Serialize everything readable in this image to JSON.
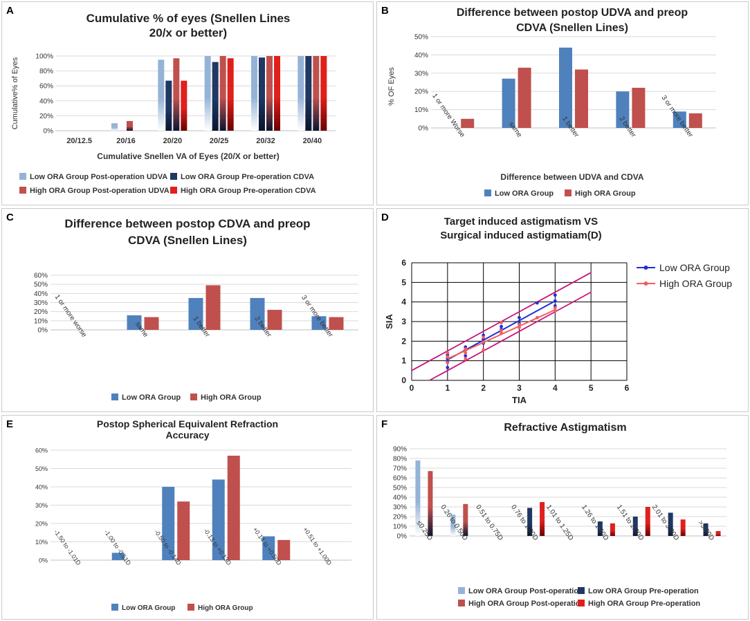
{
  "figure": {
    "panel_letters": [
      "A",
      "B",
      "C",
      "D",
      "E",
      "F"
    ]
  },
  "colors": {
    "light_blue": "#95b3d7",
    "navy": "#1f3864",
    "mid_blue": "#4f81bd",
    "brick": "#c0504d",
    "red": "#e0201b",
    "dark_red": "#6b0000",
    "royal_blue": "#1f2ed8",
    "coral": "#f25c5c",
    "magenta": "#c5157a",
    "grid_gray": "#d9d9d9"
  },
  "chart_data": [
    {
      "id": "A",
      "type": "bar",
      "title": [
        "Cumulative % of eyes (Snellen Lines",
        "20/x or better)"
      ],
      "xlabel": "Cumulative Snellen VA of Eyes (20/X or better)",
      "ylabel": "Cumulative% of Eyes",
      "ylim": [
        0,
        100
      ],
      "yticks": [
        "0%",
        "20%",
        "40%",
        "60%",
        "80%",
        "100%"
      ],
      "categories": [
        "20/12.5",
        "20/16",
        "20/20",
        "20/25",
        "20/32",
        "20/40"
      ],
      "series": [
        {
          "name": "Low ORA Group Post-operation UDVA",
          "color": "light_blue",
          "values": [
            0,
            10,
            95,
            100,
            100,
            100
          ]
        },
        {
          "name": "Low ORA Group  Pre-operation CDVA",
          "color": "navy",
          "values": [
            0,
            0,
            67,
            92,
            98,
            100
          ]
        },
        {
          "name": "High ORA Group  Post-operation UDVA",
          "color": "brick",
          "values": [
            0,
            13,
            97,
            100,
            100,
            100
          ]
        },
        {
          "name": "High ORA Group Pre-operation CDVA",
          "color": "red",
          "values": [
            0,
            0,
            67,
            97,
            100,
            100
          ]
        }
      ],
      "legend_position": "bottom"
    },
    {
      "id": "B",
      "type": "bar",
      "title": [
        "Difference between  postop UDVA and preop",
        "CDVA (Snellen Lines)"
      ],
      "xlabel": "Difference between UDVA and CDVA",
      "ylabel": "% OF Eyes",
      "ylim": [
        0,
        50
      ],
      "yticks": [
        "0%",
        "10%",
        "20%",
        "30%",
        "40%",
        "50%"
      ],
      "categories": [
        "1 or more Worse",
        "same",
        "1 better",
        "2 better",
        "3 or more better"
      ],
      "series": [
        {
          "name": "Low ORA Group",
          "color": "mid_blue",
          "values": [
            0,
            27,
            44,
            20,
            9
          ]
        },
        {
          "name": "High ORA Group",
          "color": "brick",
          "values": [
            5,
            33,
            32,
            22,
            8
          ]
        }
      ],
      "legend_position": "bottom"
    },
    {
      "id": "C",
      "type": "bar",
      "title": [
        "Difference between  postop CDVA and preop",
        "CDVA (Snellen Lines)"
      ],
      "xlabel": "",
      "ylabel": "",
      "ylim": [
        0,
        60
      ],
      "yticks": [
        "0%",
        "10%",
        "20%",
        "30%",
        "40%",
        "50%",
        "60%"
      ],
      "categories": [
        "1 or more worse",
        "same",
        "1 better",
        "2 better",
        "3 or more better"
      ],
      "series": [
        {
          "name": "Low ORA Group",
          "color": "mid_blue",
          "values": [
            0,
            16,
            35,
            35,
            15
          ]
        },
        {
          "name": "High ORA Group",
          "color": "brick",
          "values": [
            0,
            14,
            49,
            22,
            14
          ]
        }
      ],
      "legend_position": "bottom"
    },
    {
      "id": "D",
      "type": "scatter",
      "title": [
        "Target induced astigmatism VS",
        "Surgical induced astigmatiam(D)"
      ],
      "xlabel": "TIA",
      "ylabel": "SIA",
      "xlim": [
        0,
        6
      ],
      "ylim": [
        0,
        6
      ],
      "xticks": [
        "0",
        "1",
        "2",
        "3",
        "4",
        "5",
        "6"
      ],
      "yticks": [
        "0",
        "1",
        "2",
        "3",
        "4",
        "5",
        "6"
      ],
      "grid": true,
      "series": [
        {
          "name": "Low ORA Group",
          "color": "royal_blue",
          "points": [
            [
              1,
              0.65
            ],
            [
              1,
              0.95
            ],
            [
              1,
              1.1
            ],
            [
              1,
              1.3
            ],
            [
              1.5,
              1.25
            ],
            [
              1.5,
              1.55
            ],
            [
              1.5,
              1.7
            ],
            [
              2,
              1.9
            ],
            [
              2,
              2.1
            ],
            [
              2,
              2.3
            ],
            [
              2.5,
              2.6
            ],
            [
              2.5,
              2.75
            ],
            [
              3,
              2.9
            ],
            [
              3,
              3.2
            ],
            [
              3.5,
              3.95
            ],
            [
              4,
              3.8
            ],
            [
              4,
              4.05
            ],
            [
              4,
              4.35
            ]
          ],
          "fit": [
            [
              1,
              1.05
            ],
            [
              4,
              4.05
            ]
          ]
        },
        {
          "name": "High ORA Group",
          "color": "coral",
          "points": [
            [
              1,
              0.9
            ],
            [
              1,
              1.2
            ],
            [
              1,
              1.4
            ],
            [
              1.5,
              1.1
            ],
            [
              1.5,
              1.4
            ],
            [
              1.5,
              1.6
            ],
            [
              2,
              1.55
            ],
            [
              2,
              1.95
            ],
            [
              2,
              2.2
            ],
            [
              2.5,
              2.4
            ],
            [
              2.5,
              2.55
            ],
            [
              2.5,
              2.95
            ],
            [
              3,
              2.7
            ],
            [
              3,
              2.85
            ],
            [
              3.5,
              3.2
            ],
            [
              4,
              3.55
            ],
            [
              4,
              3.7
            ]
          ],
          "fit": [
            [
              1,
              1.1
            ],
            [
              4,
              3.6
            ]
          ]
        }
      ],
      "reference_lines": [
        [
          [
            0,
            0.5
          ],
          [
            5,
            5.5
          ]
        ],
        [
          [
            0.5,
            0
          ],
          [
            5,
            4.5
          ]
        ]
      ],
      "legend_position": "right"
    },
    {
      "id": "E",
      "type": "bar",
      "title": [
        "Postop Spherical Equivalent Refraction",
        "Accuracy"
      ],
      "xlabel": "",
      "ylabel": "",
      "ylim": [
        0,
        60
      ],
      "yticks": [
        "0%",
        "10%",
        "20%",
        "30%",
        "40%",
        "50%",
        "60%"
      ],
      "categories": [
        "-1.50 to -1.01D",
        "-1.00 to -0.51D",
        "-0.50 to -0.14D",
        "-0.13 to +0.13D",
        "+0.14 to +0.50D",
        "+0.51 to +1.00D"
      ],
      "series": [
        {
          "name": "Low ORA Group",
          "color": "mid_blue",
          "values": [
            0,
            4,
            40,
            44,
            13,
            0
          ]
        },
        {
          "name": "High ORA Group",
          "color": "brick",
          "values": [
            0,
            0,
            32,
            57,
            11,
            0
          ]
        }
      ],
      "legend_position": "bottom"
    },
    {
      "id": "F",
      "type": "bar",
      "title": [
        "Refractive Astigmatism"
      ],
      "xlabel": "",
      "ylabel": "",
      "ylim": [
        0,
        90
      ],
      "yticks": [
        "0%",
        "10%",
        "20%",
        "30%",
        "40%",
        "50%",
        "60%",
        "70%",
        "80%",
        "90%"
      ],
      "categories": [
        "≤0.25D",
        "0.26 to 0.50D",
        "0.51 to 0.75D",
        "0.76 to 1.00D",
        "1.01 to 1.25D",
        "1.26 to 1.50D",
        "1.51 to 2.00D",
        "2.01 to 3.00D",
        ">3.00D"
      ],
      "series": [
        {
          "name": "Low ORA Group Post-operation",
          "color": "light_blue",
          "values": [
            78,
            22,
            0,
            0,
            0,
            0,
            0,
            0,
            0
          ]
        },
        {
          "name": "Low ORA Group Pre-operation",
          "color": "navy",
          "values": [
            0,
            0,
            0,
            29,
            0,
            15,
            20,
            24,
            13
          ]
        },
        {
          "name": "High ORA Group Post-operation",
          "color": "brick",
          "values": [
            67,
            33,
            0,
            0,
            0,
            0,
            0,
            0,
            0
          ]
        },
        {
          "name": "High ORA Group Pre-operation",
          "color": "red",
          "values": [
            0,
            0,
            0,
            35,
            0,
            13,
            30,
            17,
            5
          ]
        }
      ],
      "legend_position": "bottom"
    }
  ]
}
